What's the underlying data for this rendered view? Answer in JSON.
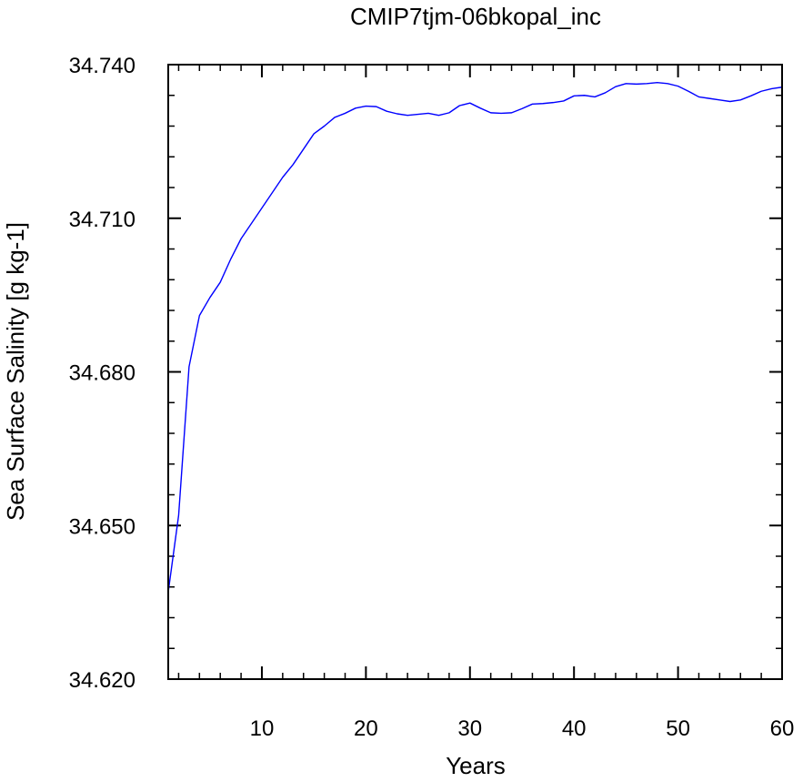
{
  "chart_data": {
    "type": "line",
    "title": "CMIP7tjm-06bkopal_inc",
    "xlabel": "Years",
    "ylabel": "Sea Surface Salinity [g kg-1]",
    "xlim": [
      1,
      60
    ],
    "ylim": [
      34.62,
      34.74
    ],
    "xticks": [
      10,
      20,
      30,
      40,
      50,
      60
    ],
    "xtick_labels": [
      "10",
      "20",
      "30",
      "40",
      "50",
      "60"
    ],
    "yticks": [
      34.62,
      34.65,
      34.68,
      34.71,
      34.74
    ],
    "ytick_labels": [
      "34.620",
      "34.650",
      "34.680",
      "34.710",
      "34.740"
    ],
    "grid": false,
    "legend": "none",
    "series": [
      {
        "color": "#0000ff",
        "x": [
          1,
          2,
          3,
          4,
          5,
          6,
          7,
          8,
          9,
          10,
          11,
          12,
          13,
          14,
          15,
          16,
          17,
          18,
          19,
          20,
          21,
          22,
          23,
          24,
          25,
          26,
          27,
          28,
          29,
          30,
          31,
          32,
          33,
          34,
          35,
          36,
          37,
          38,
          39,
          40,
          41,
          42,
          43,
          44,
          45,
          46,
          47,
          48,
          49,
          50,
          51,
          52,
          53,
          54,
          55,
          56,
          57,
          58,
          59,
          60
        ],
        "values": [
          34.637,
          34.652,
          34.681,
          34.691,
          34.6945,
          34.6975,
          34.702,
          34.706,
          34.709,
          34.712,
          34.715,
          34.718,
          34.7205,
          34.7235,
          34.7265,
          34.728,
          34.7297,
          34.7305,
          34.7315,
          34.7319,
          34.7318,
          34.7309,
          34.7304,
          34.7301,
          34.7303,
          34.7305,
          34.7301,
          34.7306,
          34.732,
          34.7325,
          34.7315,
          34.7306,
          34.7305,
          34.7306,
          34.7314,
          34.7323,
          34.7324,
          34.7326,
          34.7329,
          34.7339,
          34.734,
          34.7337,
          34.7345,
          34.7357,
          34.7363,
          34.7362,
          34.7363,
          34.7365,
          34.7363,
          34.7358,
          34.7348,
          34.7337,
          34.7334,
          34.7331,
          34.7328,
          34.7331,
          34.7339,
          34.7348,
          34.7353,
          34.7356
        ]
      }
    ]
  }
}
